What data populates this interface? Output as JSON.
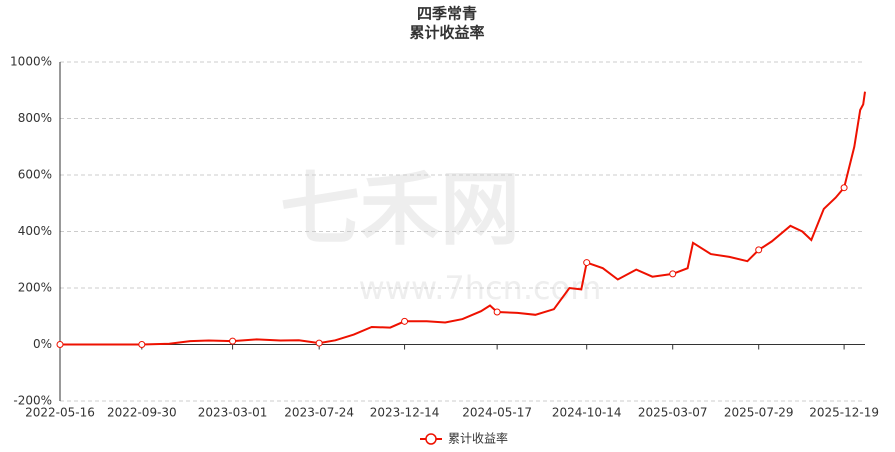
{
  "chart_data": {
    "type": "line",
    "title": "四季常青",
    "subtitle": "累计收益率",
    "watermark": "七禾网",
    "watermark_url": "www.7hcn.com",
    "x": [
      "2022-05-16",
      "2022-07-01",
      "2022-09-30",
      "2022-11-15",
      "2022-12-20",
      "2023-01-20",
      "2023-03-01",
      "2023-04-10",
      "2023-05-20",
      "2023-06-20",
      "2023-07-24",
      "2023-08-20",
      "2023-09-20",
      "2023-10-20",
      "2023-11-20",
      "2023-12-14",
      "2024-01-20",
      "2024-02-20",
      "2024-03-20",
      "2024-04-20",
      "2024-05-05",
      "2024-05-17",
      "2024-06-20",
      "2024-07-20",
      "2024-08-20",
      "2024-09-15",
      "2024-10-05",
      "2024-10-14",
      "2024-11-10",
      "2024-12-05",
      "2025-01-05",
      "2025-02-01",
      "2025-03-07",
      "2025-04-01",
      "2025-04-10",
      "2025-05-10",
      "2025-06-10",
      "2025-07-10",
      "2025-07-29",
      "2025-08-20",
      "2025-09-20",
      "2025-10-10",
      "2025-10-25",
      "2025-11-15",
      "2025-12-05",
      "2025-12-19",
      "2026-01-05",
      "2026-01-15",
      "2026-01-20",
      "2026-01-23"
    ],
    "series": [
      {
        "name": "累计收益率",
        "color": "#ee1100",
        "values": [
          0,
          0,
          0,
          3,
          12,
          14,
          12,
          18,
          14,
          15,
          5,
          15,
          35,
          62,
          60,
          82,
          82,
          78,
          90,
          118,
          138,
          115,
          112,
          105,
          125,
          200,
          195,
          290,
          270,
          230,
          265,
          240,
          250,
          270,
          360,
          320,
          310,
          295,
          335,
          365,
          420,
          400,
          370,
          480,
          520,
          555,
          700,
          830,
          850,
          895
        ]
      }
    ],
    "xlim": [
      "2022-05-16",
      "2026-01-23"
    ],
    "xticks": [
      "2022-05-16",
      "2022-09-30",
      "2023-03-01",
      "2023-07-24",
      "2023-12-14",
      "2024-05-17",
      "2024-10-14",
      "2025-03-07",
      "2025-07-29",
      "2025-12-19"
    ],
    "ylim": [
      -200,
      1000
    ],
    "yticks": [
      {
        "value": -200,
        "label": "-200%"
      },
      {
        "value": 0,
        "label": "0%"
      },
      {
        "value": 200,
        "label": "200%"
      },
      {
        "value": 400,
        "label": "400%"
      },
      {
        "value": 600,
        "label": "600%"
      },
      {
        "value": 800,
        "label": "800%"
      },
      {
        "value": 1000,
        "label": "1000%"
      }
    ],
    "grid": true,
    "legend": "bottom"
  }
}
